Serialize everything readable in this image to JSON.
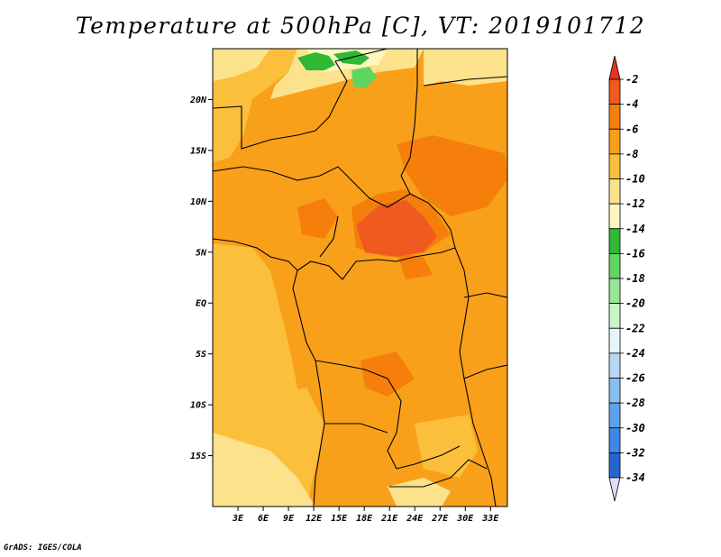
{
  "title": "Temperature at 500hPa [C], VT: 2019101712",
  "credit": "GrADS: IGES/COLA",
  "map": {
    "lat_range": [
      -20,
      25
    ],
    "lon_range": [
      0,
      35
    ],
    "lat_ticks": [
      {
        "lat": 20,
        "label": "20N"
      },
      {
        "lat": 15,
        "label": "15N"
      },
      {
        "lat": 10,
        "label": "10N"
      },
      {
        "lat": 5,
        "label": "5N"
      },
      {
        "lat": 0,
        "label": "EQ"
      },
      {
        "lat": -5,
        "label": "5S"
      },
      {
        "lat": -10,
        "label": "10S"
      },
      {
        "lat": -15,
        "label": "15S"
      }
    ],
    "lon_ticks": [
      {
        "lon": 3,
        "label": "3E"
      },
      {
        "lon": 6,
        "label": "6E"
      },
      {
        "lon": 9,
        "label": "9E"
      },
      {
        "lon": 12,
        "label": "12E"
      },
      {
        "lon": 15,
        "label": "15E"
      },
      {
        "lon": 18,
        "label": "18E"
      },
      {
        "lon": 21,
        "label": "21E"
      },
      {
        "lon": 24,
        "label": "24E"
      },
      {
        "lon": 27,
        "label": "27E"
      },
      {
        "lon": 30,
        "label": "30E"
      },
      {
        "lon": 33,
        "label": "33E"
      }
    ]
  },
  "colorbar": {
    "levels": [
      {
        "label": "-2",
        "color": "#f05a1e"
      },
      {
        "label": "-4",
        "color": "#f57f0a"
      },
      {
        "label": "-6",
        "color": "#f9a01a"
      },
      {
        "label": "-8",
        "color": "#fbbf3c"
      },
      {
        "label": "-10",
        "color": "#fde28c"
      },
      {
        "label": "-12",
        "color": "#fdf6be"
      },
      {
        "label": "-14",
        "color": "#2eb935"
      },
      {
        "label": "-16",
        "color": "#5fd55f"
      },
      {
        "label": "-18",
        "color": "#96e796"
      },
      {
        "label": "-20",
        "color": "#c8f5c8"
      },
      {
        "label": "-22",
        "color": "#e5f6fb"
      },
      {
        "label": "-24",
        "color": "#b6d8f4"
      },
      {
        "label": "-26",
        "color": "#86bff0"
      },
      {
        "label": "-28",
        "color": "#5aa3ec"
      },
      {
        "label": "-30",
        "color": "#3d88e4"
      },
      {
        "label": "-32",
        "color": "#2565d2"
      },
      {
        "label": "-34",
        "color": "#1340ab"
      }
    ],
    "top_color": "#e8321e",
    "bottom_colors": [
      "#0a1a78",
      "#dcdcf5"
    ]
  }
}
